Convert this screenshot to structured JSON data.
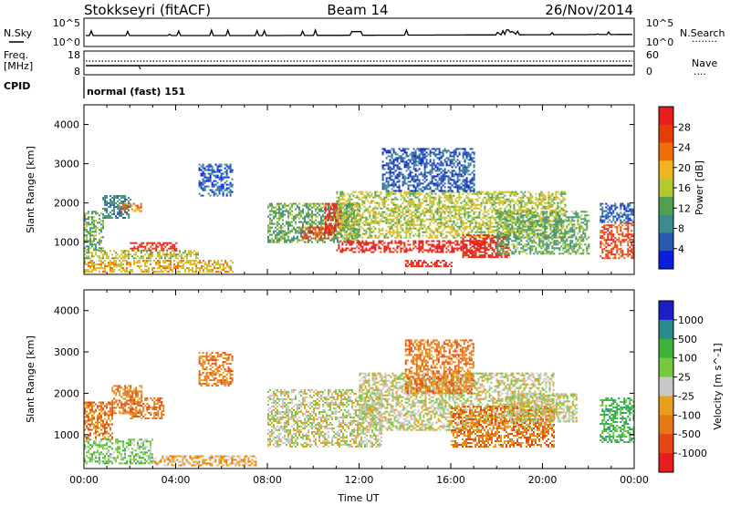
{
  "header": {
    "station": "Stokkseyri (fitACF)",
    "beam": "Beam 14",
    "date": "26/Nov/2014"
  },
  "labels": {
    "nsky": "N.Sky",
    "nsearch": "N.Search",
    "nsearch_dots": "........",
    "freq_line1": "Freq.",
    "freq_line2": "[MHz]",
    "nave": "Nave",
    "nave_dots": "....",
    "cpid": "CPID",
    "program": "normal (fast) 151",
    "noise_top_left": "10^5",
    "noise_bot_left": "10^0",
    "noise_top_right": "10^5",
    "noise_bot_right": "10^0",
    "freq_top": "18",
    "freq_bot": "8",
    "nave_top": "60",
    "nave_bot": "0",
    "ylabel": "Slant Range [km]",
    "xlabel": "Time UT"
  },
  "colors": {
    "power_scale": [
      "#0a1edc",
      "#285ab4",
      "#3c8c8c",
      "#50a050",
      "#b4c832",
      "#f0b41e",
      "#f06e0a",
      "#e63c0a",
      "#e61e1e"
    ],
    "velocity_scale": [
      "#1e1ec8",
      "#288c8c",
      "#3cb43c",
      "#78c83c",
      "#c8c8c8",
      "#e6a01e",
      "#e67814",
      "#e64614",
      "#e61e1e"
    ]
  },
  "chart_data": [
    {
      "type": "line",
      "name": "noise-panel",
      "series": [
        {
          "name": "N.Sky",
          "values": []
        },
        {
          "name": "N.Search",
          "values": []
        }
      ],
      "ylim_labels": [
        "10^0",
        "10^5"
      ],
      "xlim": [
        0,
        24
      ]
    },
    {
      "type": "line",
      "name": "frequency-panel",
      "series": [
        {
          "name": "Freq.",
          "values": []
        },
        {
          "name": "Nave",
          "values": []
        }
      ],
      "ylim": [
        8,
        18
      ],
      "y2lim": [
        0,
        60
      ]
    },
    {
      "type": "heatmap",
      "name": "power",
      "xlabel": "",
      "ylabel": "Slant Range [km]",
      "xlim": [
        0,
        24
      ],
      "ylim": [
        180,
        4500
      ],
      "y_ticks": [
        "1000",
        "2000",
        "3000",
        "4000"
      ],
      "colorbar": {
        "label": "Power [dB]",
        "ticks": [
          "4",
          "8",
          "12",
          "16",
          "20",
          "24",
          "28"
        ]
      },
      "regions": [
        {
          "t0": 0.0,
          "t1": 0.8,
          "r0": 800,
          "r1": 1800,
          "level": 3
        },
        {
          "t0": 0.8,
          "t1": 2.0,
          "r0": 1600,
          "r1": 2200,
          "level": 2
        },
        {
          "t0": 1.5,
          "t1": 2.5,
          "r0": 1800,
          "r1": 2000,
          "level": 6
        },
        {
          "t0": 0.0,
          "t1": 5.0,
          "r0": 600,
          "r1": 800,
          "level": 4
        },
        {
          "t0": 0.0,
          "t1": 6.5,
          "r0": 250,
          "r1": 550,
          "level": 5
        },
        {
          "t0": 2.0,
          "t1": 4.0,
          "r0": 800,
          "r1": 1000,
          "level": 8
        },
        {
          "t0": 5.0,
          "t1": 6.5,
          "r0": 2200,
          "r1": 3000,
          "level": 1
        },
        {
          "t0": 8.0,
          "t1": 12.0,
          "r0": 1000,
          "r1": 2000,
          "level": 3
        },
        {
          "t0": 9.5,
          "t1": 10.8,
          "r0": 1100,
          "r1": 1400,
          "level": 7
        },
        {
          "t0": 10.5,
          "t1": 11.2,
          "r0": 1200,
          "r1": 2000,
          "level": 8
        },
        {
          "t0": 11.0,
          "t1": 17.5,
          "r0": 750,
          "r1": 1050,
          "level": 8
        },
        {
          "t0": 11.0,
          "t1": 21.0,
          "r0": 1100,
          "r1": 2300,
          "level": 4
        },
        {
          "t0": 13.0,
          "t1": 17.0,
          "r0": 2300,
          "r1": 3400,
          "level": 1
        },
        {
          "t0": 14.0,
          "t1": 16.0,
          "r0": 380,
          "r1": 550,
          "level": 8
        },
        {
          "t0": 16.5,
          "t1": 18.5,
          "r0": 600,
          "r1": 1200,
          "level": 8
        },
        {
          "t0": 18.0,
          "t1": 22.0,
          "r0": 700,
          "r1": 1800,
          "level": 3
        },
        {
          "t0": 22.5,
          "t1": 24.0,
          "r0": 600,
          "r1": 1500,
          "level": 7
        },
        {
          "t0": 22.5,
          "t1": 24.0,
          "r0": 1500,
          "r1": 2000,
          "level": 1
        }
      ]
    },
    {
      "type": "heatmap",
      "name": "velocity",
      "xlabel": "Time UT",
      "ylabel": "Slant Range [km]",
      "xlim": [
        0,
        24
      ],
      "ylim": [
        180,
        4500
      ],
      "x_ticks": [
        "00:00",
        "04:00",
        "08:00",
        "12:00",
        "16:00",
        "20:00",
        "00:00"
      ],
      "y_ticks": [
        "1000",
        "2000",
        "3000",
        "4000"
      ],
      "colorbar": {
        "label": "Velocity [m s^-1]",
        "ticks": [
          "1000",
          "500",
          "100",
          "25",
          "-25",
          "-100",
          "-500",
          "-1000"
        ]
      },
      "regions": [
        {
          "t0": 0.0,
          "t1": 1.2,
          "r0": 900,
          "r1": 1800,
          "level": 6
        },
        {
          "t0": 0.0,
          "t1": 3.0,
          "r0": 300,
          "r1": 900,
          "level": 3
        },
        {
          "t0": 1.2,
          "t1": 2.5,
          "r0": 1500,
          "r1": 2200,
          "level": 6
        },
        {
          "t0": 2.0,
          "t1": 3.5,
          "r0": 1400,
          "r1": 1900,
          "level": 6
        },
        {
          "t0": 3.0,
          "t1": 7.5,
          "r0": 250,
          "r1": 500,
          "level": 5
        },
        {
          "t0": 5.0,
          "t1": 6.5,
          "r0": 2200,
          "r1": 3000,
          "level": 6
        },
        {
          "t0": 8.0,
          "t1": 13.0,
          "r0": 700,
          "r1": 2100,
          "level": 4
        },
        {
          "t0": 12.0,
          "t1": 20.5,
          "r0": 1100,
          "r1": 2500,
          "level": 4
        },
        {
          "t0": 14.0,
          "t1": 17.0,
          "r0": 2000,
          "r1": 3300,
          "level": 6
        },
        {
          "t0": 16.0,
          "t1": 20.5,
          "r0": 700,
          "r1": 1700,
          "level": 6
        },
        {
          "t0": 18.5,
          "t1": 21.5,
          "r0": 1300,
          "r1": 2000,
          "level": 4
        },
        {
          "t0": 22.5,
          "t1": 24.0,
          "r0": 800,
          "r1": 1900,
          "level": 2
        }
      ]
    }
  ]
}
